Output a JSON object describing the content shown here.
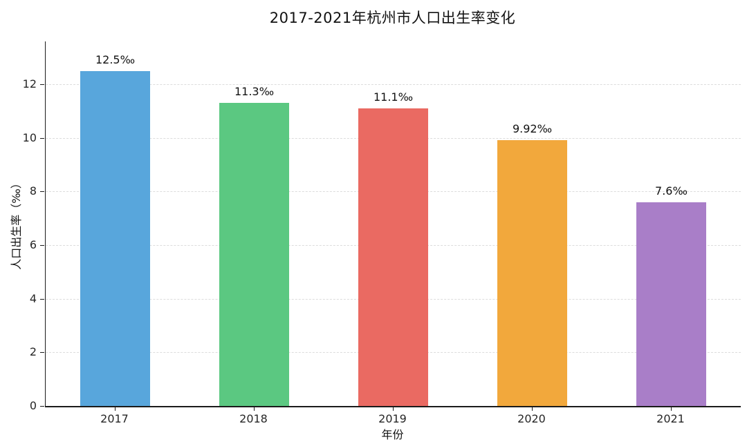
{
  "chart_data": {
    "type": "bar",
    "title": "2017-2021年杭州市人口出生率变化",
    "xlabel": "年份",
    "ylabel": "人口出生率（‰）",
    "categories": [
      "2017",
      "2018",
      "2019",
      "2020",
      "2021"
    ],
    "values": [
      12.5,
      11.3,
      11.1,
      9.92,
      7.6
    ],
    "bar_labels": [
      "12.5‰",
      "11.3‰",
      "11.1‰",
      "9.92‰",
      "7.6‰"
    ],
    "bar_colors": [
      "#58a6dc",
      "#5bc881",
      "#ea6a62",
      "#f2a83c",
      "#a97ec8"
    ],
    "yticks": [
      0,
      2,
      4,
      6,
      8,
      10,
      12
    ],
    "ylim": [
      0,
      13.6
    ],
    "grid": "horizontal-dashed",
    "grid_color": "#dcdcdc",
    "legend": "none"
  }
}
